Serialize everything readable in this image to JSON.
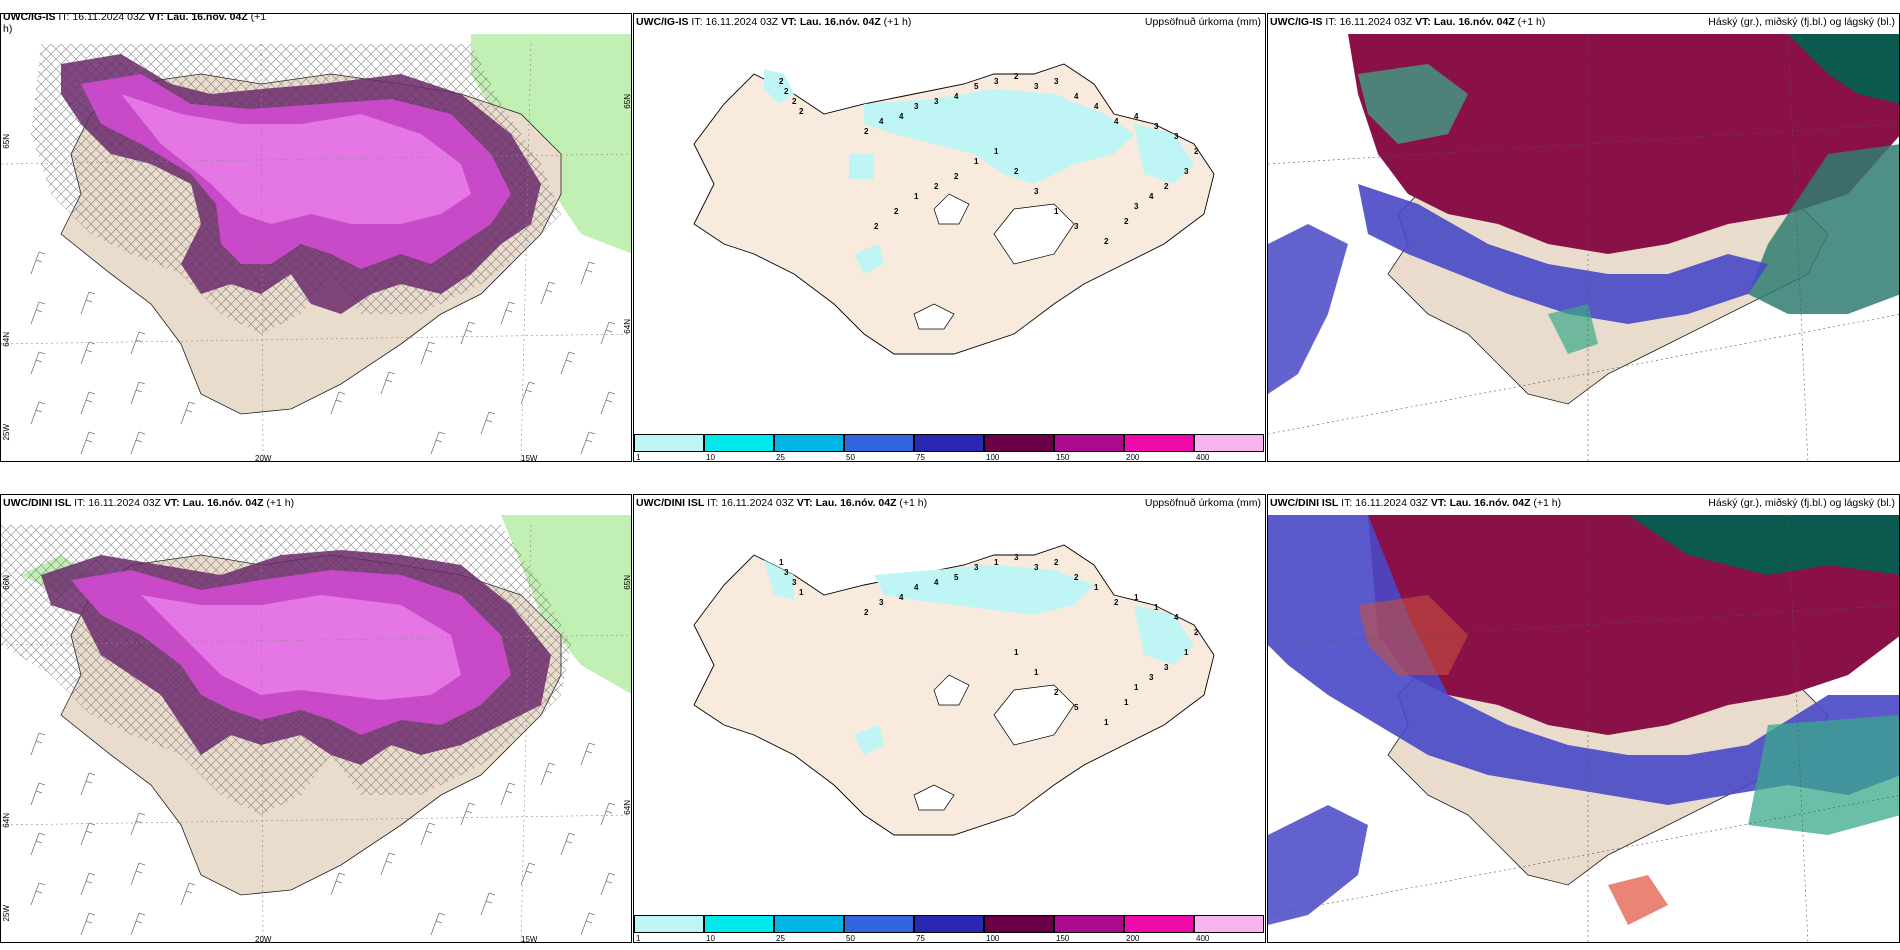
{
  "panels": [
    {
      "id": "p1",
      "model": "UWC/IG-IS",
      "it_label": "IT:",
      "it": "16.11.2024 03Z",
      "vt_label": "VT:",
      "vt": "Lau. 16.nóv. 04Z",
      "lead": "(+1",
      "lead2": "h)",
      "right": ""
    },
    {
      "id": "p2",
      "model": "UWC/IG-IS",
      "it_label": "IT:",
      "it": "16.11.2024 03Z",
      "vt_label": "VT:",
      "vt": "Lau. 16.nóv. 04Z",
      "lead": "(+1 h)",
      "right": "Uppsöfnuð úrkoma (mm)"
    },
    {
      "id": "p3",
      "model": "UWC/IG-IS",
      "it_label": "IT:",
      "it": "16.11.2024 03Z",
      "vt_label": "VT:",
      "vt": "Lau. 16.nóv. 04Z",
      "lead": "(+1 h)",
      "right": "Háský (gr.), miðský (fj.bl.) og lágský (bl.)"
    },
    {
      "id": "p4",
      "model": "UWC/DINI ISL",
      "it_label": "IT:",
      "it": "16.11.2024 03Z",
      "vt_label": "VT:",
      "vt": "Lau. 16.nóv. 04Z",
      "lead": "(+1 h)",
      "right": ""
    },
    {
      "id": "p5",
      "model": "UWC/DINI ISL",
      "it_label": "IT:",
      "it": "16.11.2024 03Z",
      "vt_label": "VT:",
      "vt": "Lau. 16.nóv. 04Z",
      "lead": "(+1 h)",
      "right": "Uppsöfnuð úrkoma (mm)"
    },
    {
      "id": "p6",
      "model": "UWC/DINI ISL",
      "it_label": "IT:",
      "it": "16.11.2024 03Z",
      "vt_label": "VT:",
      "vt": "Lau. 16.nóv. 04Z",
      "lead": "(+1 h)",
      "right": "Háský (gr.), miðský (fj.bl.) og lágský (bl.)"
    }
  ],
  "axes": {
    "lon1": "20W",
    "lon2": "15W",
    "lat_a": "65N",
    "lat_b": "64N",
    "lat_c": "66N",
    "lon_left": "25W"
  },
  "colorbar": {
    "levels": [
      "1",
      "10",
      "25",
      "50",
      "75",
      "100",
      "150",
      "200",
      "400"
    ],
    "colors": [
      "#bff5f5",
      "#00e8ec",
      "#00b4e6",
      "#3164e0",
      "#2828b4",
      "#6a004a",
      "#aa0a8c",
      "#f00aaa",
      "#f5b4f0"
    ]
  },
  "precip_labels_top": [
    "2",
    "2",
    "2",
    "2",
    "2",
    "4",
    "4",
    "3",
    "3",
    "4",
    "5",
    "3",
    "2",
    "3",
    "3",
    "4",
    "4",
    "4",
    "4",
    "3",
    "3",
    "2",
    "3",
    "2",
    "4",
    "3",
    "2",
    "2",
    "3",
    "1",
    "3",
    "2",
    "1",
    "1",
    "2",
    "2",
    "1",
    "2",
    "2"
  ],
  "precip_labels_bottom": [
    "1",
    "3",
    "3",
    "1",
    "2",
    "3",
    "4",
    "4",
    "4",
    "5",
    "3",
    "1",
    "3",
    "3",
    "2",
    "2",
    "1",
    "2",
    "1",
    "1",
    "4",
    "2",
    "1",
    "3",
    "3",
    "1",
    "1",
    "1",
    "5",
    "2",
    "1",
    "1"
  ],
  "colors": {
    "land": "#f8eadd",
    "land_tan": "#eadccc",
    "sea": "#ffffff",
    "green": "#c2f0b4",
    "purple_dark": "#6a2a6a",
    "magenta": "#d04ad0",
    "pink": "#f08af0",
    "high_cloud": "#0b5a50",
    "mid_cloud": "#8a1048",
    "low_cloud": "#4848c8"
  }
}
